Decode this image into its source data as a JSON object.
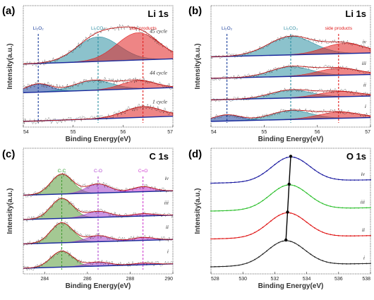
{
  "chart_data": [
    {
      "panel": "(a)",
      "title": "Li 1s",
      "type": "line",
      "xlabel": "Binding Energy(eV)",
      "ylabel": "Intensity(a.u.)",
      "xlim": [
        54,
        57
      ],
      "xticks": [
        "54",
        "55",
        "56",
        "57"
      ],
      "grid": false,
      "peaks": [
        {
          "label": "Li₂O₂",
          "position": 54.3,
          "color": "#1a3f9c"
        },
        {
          "label": "Li₂CO₃",
          "position": 55.5,
          "color": "#2e8fa3"
        },
        {
          "label": "side products",
          "position": 56.4,
          "color": "#e02020"
        }
      ],
      "series": [
        {
          "name": "1 cycle",
          "components": [
            {
              "color": "#e02020",
              "center": 56.4,
              "fwhm": 0.9,
              "height": 0.45
            }
          ]
        },
        {
          "name": "44 cycle",
          "components": [
            {
              "color": "#1a3f9c",
              "center": 54.3,
              "fwhm": 0.6,
              "height": 0.35
            },
            {
              "color": "#2e8fa3",
              "center": 55.4,
              "fwhm": 0.9,
              "height": 0.42
            },
            {
              "color": "#e02020",
              "center": 56.3,
              "fwhm": 0.8,
              "height": 0.35
            }
          ]
        },
        {
          "name": "45 cycle",
          "components": [
            {
              "color": "#2e8fa3",
              "center": 55.5,
              "fwhm": 1.0,
              "height": 0.9
            },
            {
              "color": "#e02020",
              "center": 56.3,
              "fwhm": 1.0,
              "height": 1.0
            }
          ]
        }
      ]
    },
    {
      "panel": "(b)",
      "title": "Li 1s",
      "type": "line",
      "xlabel": "Binding Energy(eV)",
      "ylabel": "Intensity(a.u.)",
      "xlim": [
        54,
        57
      ],
      "xticks": [
        "54",
        "55",
        "56",
        "57"
      ],
      "grid": false,
      "peaks": [
        {
          "label": "Li₂O₂",
          "position": 54.3,
          "color": "#1a3f9c"
        },
        {
          "label": "Li₂CO₃",
          "position": 55.5,
          "color": "#2e8fa3"
        },
        {
          "label": "side products",
          "position": 56.4,
          "color": "#e02020"
        }
      ],
      "series": [
        {
          "name": "i",
          "components": [
            {
              "color": "#1a3f9c",
              "center": 54.3,
              "fwhm": 0.6,
              "height": 0.35
            },
            {
              "color": "#2e8fa3",
              "center": 55.5,
              "fwhm": 0.9,
              "height": 0.5
            },
            {
              "color": "#e02020",
              "center": 56.4,
              "fwhm": 0.9,
              "height": 0.35
            }
          ]
        },
        {
          "name": "ii",
          "components": [
            {
              "color": "#2e8fa3",
              "center": 55.5,
              "fwhm": 0.9,
              "height": 0.45
            },
            {
              "color": "#e02020",
              "center": 56.4,
              "fwhm": 0.9,
              "height": 0.3
            }
          ]
        },
        {
          "name": "iii",
          "components": [
            {
              "color": "#2e8fa3",
              "center": 55.5,
              "fwhm": 0.9,
              "height": 0.55
            },
            {
              "color": "#e02020",
              "center": 56.4,
              "fwhm": 0.9,
              "height": 0.4
            }
          ]
        },
        {
          "name": "iv",
          "components": [
            {
              "color": "#2e8fa3",
              "center": 55.5,
              "fwhm": 1.0,
              "height": 0.9
            },
            {
              "color": "#e02020",
              "center": 56.5,
              "fwhm": 0.9,
              "height": 0.5
            }
          ]
        }
      ]
    },
    {
      "panel": "(c)",
      "title": "C 1s",
      "type": "line",
      "xlabel": "Binding Energy(eV)",
      "ylabel": "Intensity(a.u.)",
      "xlim": [
        283,
        290
      ],
      "xticks": [
        "284",
        "286",
        "288",
        "290"
      ],
      "grid": false,
      "peaks": [
        {
          "label": "C-C",
          "position": 284.8,
          "color": "#2e9e2e"
        },
        {
          "label": "C-O",
          "position": 286.5,
          "color": "#b04ad0"
        },
        {
          "label": "C=O",
          "position": 288.6,
          "color": "#d040d0"
        }
      ],
      "series": [
        {
          "name": "i",
          "components": [
            {
              "color": "#5a9a3a",
              "center": 284.8,
              "fwhm": 1.2,
              "height": 0.8
            },
            {
              "color": "#a040c8",
              "center": 286.5,
              "fwhm": 1.3,
              "height": 0.2
            },
            {
              "color": "#c030c8",
              "center": 288.6,
              "fwhm": 1.2,
              "height": 0.08
            }
          ]
        },
        {
          "name": "ii",
          "components": [
            {
              "color": "#5a9a3a",
              "center": 284.8,
              "fwhm": 1.2,
              "height": 1.0
            },
            {
              "color": "#a040c8",
              "center": 286.5,
              "fwhm": 1.3,
              "height": 0.3
            },
            {
              "color": "#c030c8",
              "center": 288.6,
              "fwhm": 1.2,
              "height": 0.15
            }
          ]
        },
        {
          "name": "iii",
          "components": [
            {
              "color": "#5a9a3a",
              "center": 284.8,
              "fwhm": 1.2,
              "height": 1.0
            },
            {
              "color": "#a040c8",
              "center": 286.5,
              "fwhm": 1.3,
              "height": 0.3
            },
            {
              "color": "#c030c8",
              "center": 288.6,
              "fwhm": 1.2,
              "height": 0.12
            }
          ]
        },
        {
          "name": "iv",
          "components": [
            {
              "color": "#5a9a3a",
              "center": 284.8,
              "fwhm": 1.2,
              "height": 1.0
            },
            {
              "color": "#a040c8",
              "center": 286.5,
              "fwhm": 1.3,
              "height": 0.45
            },
            {
              "color": "#c030c8",
              "center": 288.6,
              "fwhm": 1.2,
              "height": 0.25
            }
          ]
        }
      ]
    },
    {
      "panel": "(d)",
      "title": "O 1s",
      "type": "line",
      "xlabel": "Binding Energy(eV)",
      "ylabel": "Intensity(a.u.)",
      "xlim": [
        528,
        538
      ],
      "xticks": [
        "528",
        "530",
        "532",
        "534",
        "536",
        "538"
      ],
      "grid": false,
      "series": [
        {
          "name": "i",
          "color": "#222222",
          "peak": 532.7,
          "fwhm": 2.8
        },
        {
          "name": "ii",
          "color": "#e01818",
          "peak": 532.8,
          "fwhm": 2.8
        },
        {
          "name": "iii",
          "color": "#2ec02e",
          "peak": 532.9,
          "fwhm": 2.8
        },
        {
          "name": "iv",
          "color": "#1a1aa0",
          "peak": 533.0,
          "fwhm": 2.8
        }
      ]
    }
  ]
}
